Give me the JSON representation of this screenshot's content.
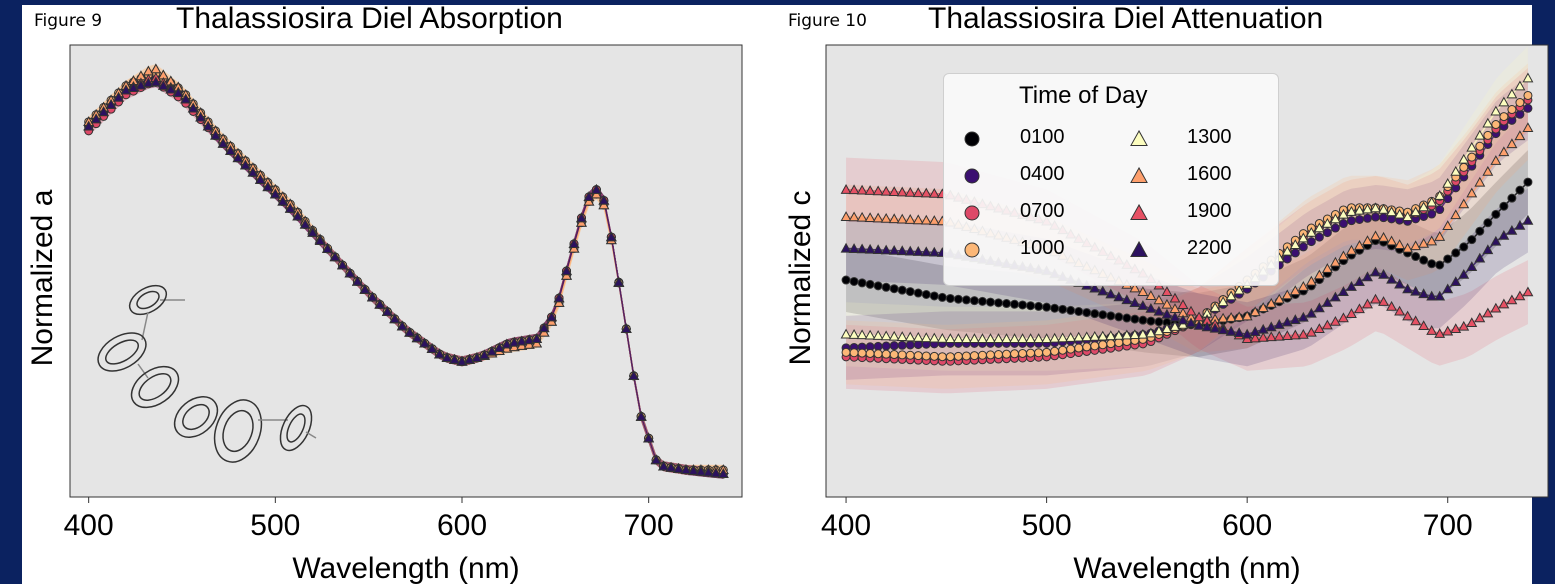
{
  "figures": [
    {
      "label": "Figure 9",
      "title": "Thalassiosira Diel Absorption",
      "xlabel": "Wavelength (nm)",
      "ylabel": "Normalized a"
    },
    {
      "label": "Figure 10",
      "title": "Thalassiosira Diel Attenuation",
      "xlabel": "Wavelength (nm)",
      "ylabel": "Normalized c",
      "legend_title": "Time of Day"
    }
  ],
  "colors": {
    "background": "#0b2260",
    "plot_bg": "#e5e5e5",
    "0100": "#000004",
    "0400": "#3b0f70",
    "0700": "#de4968",
    "1000": "#fcb777",
    "1300": "#fcfdbf",
    "1600": "#fd9f6c",
    "1900": "#e65164",
    "2200": "#2c115f"
  },
  "chart_data": [
    {
      "type": "line",
      "title": "Thalassiosira Diel Absorption",
      "xlabel": "Wavelength (nm)",
      "ylabel": "Normalized a",
      "xlim": [
        390,
        750
      ],
      "xticks": [
        400,
        500,
        600,
        700
      ],
      "xtick_labels": [
        "400",
        "500",
        "600",
        "700"
      ],
      "yticks_shown": false,
      "grid": false,
      "x": [
        400,
        420,
        435,
        450,
        470,
        490,
        510,
        530,
        550,
        570,
        590,
        600,
        610,
        625,
        640,
        650,
        660,
        667,
        672,
        677,
        685,
        695,
        705,
        720,
        743
      ],
      "series": [
        {
          "name": "0100",
          "marker": "circle",
          "values": [
            0.82,
            0.9,
            0.93,
            0.89,
            0.79,
            0.71,
            0.63,
            0.54,
            0.45,
            0.37,
            0.31,
            0.3,
            0.31,
            0.34,
            0.35,
            0.41,
            0.56,
            0.66,
            0.68,
            0.65,
            0.45,
            0.19,
            0.07,
            0.06,
            0.05
          ]
        },
        {
          "name": "0400",
          "marker": "circle",
          "values": [
            0.82,
            0.9,
            0.93,
            0.89,
            0.79,
            0.71,
            0.63,
            0.54,
            0.45,
            0.37,
            0.31,
            0.3,
            0.31,
            0.34,
            0.35,
            0.41,
            0.56,
            0.66,
            0.68,
            0.65,
            0.45,
            0.19,
            0.07,
            0.06,
            0.05
          ]
        },
        {
          "name": "0700",
          "marker": "circle",
          "values": [
            0.81,
            0.89,
            0.92,
            0.88,
            0.79,
            0.71,
            0.63,
            0.54,
            0.45,
            0.37,
            0.31,
            0.3,
            0.31,
            0.34,
            0.35,
            0.41,
            0.56,
            0.66,
            0.68,
            0.65,
            0.45,
            0.19,
            0.07,
            0.06,
            0.05
          ]
        },
        {
          "name": "1000",
          "marker": "circle",
          "values": [
            0.83,
            0.91,
            0.94,
            0.9,
            0.8,
            0.72,
            0.64,
            0.54,
            0.45,
            0.37,
            0.31,
            0.3,
            0.31,
            0.34,
            0.35,
            0.4,
            0.55,
            0.65,
            0.67,
            0.64,
            0.45,
            0.19,
            0.07,
            0.06,
            0.06
          ]
        },
        {
          "name": "1300",
          "marker": "triangle",
          "values": [
            0.83,
            0.91,
            0.95,
            0.9,
            0.8,
            0.72,
            0.64,
            0.54,
            0.45,
            0.37,
            0.31,
            0.3,
            0.31,
            0.33,
            0.34,
            0.4,
            0.55,
            0.65,
            0.67,
            0.64,
            0.45,
            0.19,
            0.07,
            0.06,
            0.06
          ]
        },
        {
          "name": "1600",
          "marker": "triangle",
          "values": [
            0.83,
            0.91,
            0.95,
            0.9,
            0.8,
            0.72,
            0.64,
            0.54,
            0.45,
            0.37,
            0.31,
            0.3,
            0.31,
            0.33,
            0.34,
            0.4,
            0.55,
            0.65,
            0.67,
            0.64,
            0.45,
            0.19,
            0.07,
            0.06,
            0.06
          ]
        },
        {
          "name": "1900",
          "marker": "triangle",
          "values": [
            0.82,
            0.9,
            0.93,
            0.89,
            0.79,
            0.71,
            0.63,
            0.54,
            0.45,
            0.37,
            0.31,
            0.3,
            0.31,
            0.34,
            0.35,
            0.41,
            0.56,
            0.66,
            0.68,
            0.65,
            0.45,
            0.19,
            0.07,
            0.06,
            0.05
          ]
        },
        {
          "name": "2200",
          "marker": "triangle",
          "values": [
            0.82,
            0.9,
            0.92,
            0.89,
            0.79,
            0.71,
            0.63,
            0.54,
            0.45,
            0.37,
            0.31,
            0.3,
            0.31,
            0.34,
            0.35,
            0.41,
            0.56,
            0.66,
            0.68,
            0.65,
            0.45,
            0.19,
            0.07,
            0.06,
            0.05
          ]
        }
      ]
    },
    {
      "type": "line",
      "title": "Thalassiosira Diel Attenuation",
      "xlabel": "Wavelength (nm)",
      "ylabel": "Normalized c",
      "xlim": [
        390,
        750
      ],
      "xticks": [
        400,
        500,
        600,
        700
      ],
      "xtick_labels": [
        "400",
        "500",
        "600",
        "700"
      ],
      "yticks_shown": false,
      "grid": false,
      "legend_placement": "top-left",
      "x": [
        400,
        450,
        500,
        550,
        575,
        600,
        630,
        650,
        665,
        680,
        695,
        710,
        725,
        743
      ],
      "series": [
        {
          "name": "0100",
          "marker": "circle",
          "values": [
            0.48,
            0.44,
            0.42,
            0.39,
            0.38,
            0.4,
            0.46,
            0.53,
            0.57,
            0.54,
            0.51,
            0.56,
            0.63,
            0.71
          ]
        },
        {
          "name": "0400",
          "marker": "circle",
          "values": [
            0.33,
            0.34,
            0.34,
            0.36,
            0.39,
            0.46,
            0.56,
            0.61,
            0.62,
            0.61,
            0.63,
            0.72,
            0.81,
            0.87
          ]
        },
        {
          "name": "0700",
          "marker": "circle",
          "values": [
            0.31,
            0.3,
            0.31,
            0.34,
            0.39,
            0.48,
            0.58,
            0.63,
            0.64,
            0.62,
            0.65,
            0.73,
            0.82,
            0.89
          ]
        },
        {
          "name": "1000",
          "marker": "circle",
          "values": [
            0.32,
            0.31,
            0.32,
            0.35,
            0.39,
            0.48,
            0.59,
            0.64,
            0.64,
            0.63,
            0.66,
            0.74,
            0.83,
            0.9
          ]
        },
        {
          "name": "1300",
          "marker": "triangle",
          "values": [
            0.36,
            0.35,
            0.35,
            0.36,
            0.39,
            0.47,
            0.58,
            0.63,
            0.64,
            0.62,
            0.66,
            0.76,
            0.86,
            0.94
          ]
        },
        {
          "name": "1600",
          "marker": "triangle",
          "values": [
            0.62,
            0.61,
            0.55,
            0.45,
            0.39,
            0.4,
            0.47,
            0.54,
            0.58,
            0.55,
            0.57,
            0.66,
            0.75,
            0.83
          ]
        },
        {
          "name": "1900",
          "marker": "triangle",
          "values": [
            0.68,
            0.67,
            0.61,
            0.49,
            0.4,
            0.35,
            0.36,
            0.4,
            0.44,
            0.4,
            0.36,
            0.38,
            0.42,
            0.46
          ]
        },
        {
          "name": "2200",
          "marker": "triangle",
          "values": [
            0.55,
            0.54,
            0.5,
            0.42,
            0.38,
            0.36,
            0.4,
            0.46,
            0.5,
            0.46,
            0.44,
            0.5,
            0.57,
            0.62
          ]
        }
      ]
    }
  ],
  "legend": {
    "title": "Time of Day",
    "items": [
      {
        "label": "0100",
        "marker": "circle"
      },
      {
        "label": "0400",
        "marker": "circle"
      },
      {
        "label": "0700",
        "marker": "circle"
      },
      {
        "label": "1000",
        "marker": "circle"
      },
      {
        "label": "1300",
        "marker": "triangle"
      },
      {
        "label": "1600",
        "marker": "triangle"
      },
      {
        "label": "1900",
        "marker": "triangle"
      },
      {
        "label": "2200",
        "marker": "triangle"
      }
    ]
  },
  "illustration": {
    "icon": "diatom-chain-drawing"
  }
}
